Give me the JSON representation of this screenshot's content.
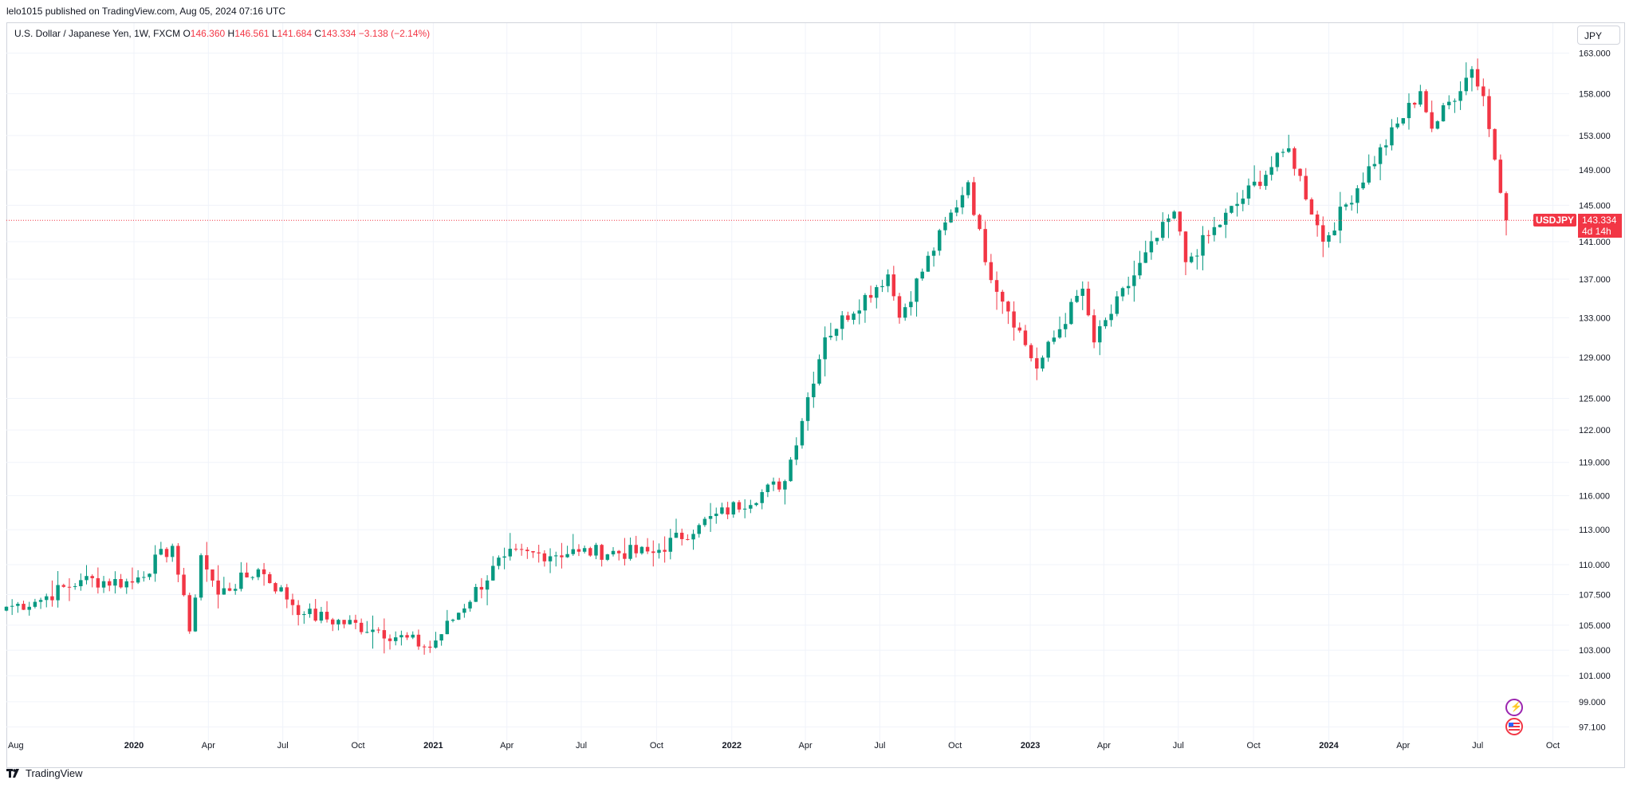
{
  "header": {
    "published_line": "lelo1015 published on TradingView.com, Aug 05, 2024 07:16 UTC"
  },
  "legend": {
    "symbol_desc": "U.S. Dollar / Japanese Yen, 1W, FXCM",
    "open_label": "O",
    "open": "146.360",
    "high_label": "H",
    "high": "146.561",
    "low_label": "L",
    "low": "141.684",
    "close_label": "C",
    "close": "143.334",
    "change": "−3.138 (−2.14%)"
  },
  "price_scale": {
    "currency": "JPY"
  },
  "last_price": {
    "symbol": "USDJPY",
    "price": "143.334",
    "countdown": "4d 14h"
  },
  "footer": {
    "brand": "TradingView"
  },
  "colors": {
    "up": "#089981",
    "down": "#f23645",
    "grid": "#f0f3fa",
    "last_line": "#f23645"
  },
  "icons": {
    "event_1": "lightning-icon",
    "event_2": "us-flag-icon",
    "logo": "tradingview-logo-icon"
  },
  "chart_data": {
    "type": "candlestick",
    "title": "U.S. Dollar / Japanese Yen, 1W, FXCM",
    "interval": "1W",
    "y_scale": "log",
    "ylim": [
      96.0,
      166.8
    ],
    "xlim": [
      "2019-07-29",
      "2024-10-21"
    ],
    "grid": true,
    "y_ticks": [
      97.1,
      99.0,
      101.0,
      103.0,
      105.0,
      107.5,
      110.0,
      113.0,
      116.0,
      119.0,
      122.0,
      125.0,
      129.0,
      133.0,
      137.0,
      141.0,
      145.0,
      149.0,
      153.0,
      158.0,
      163.0
    ],
    "y_tick_labels": [
      "97.100",
      "99.000",
      "101.000",
      "103.000",
      "105.000",
      "107.500",
      "110.000",
      "113.000",
      "116.000",
      "119.000",
      "122.000",
      "125.000",
      "129.000",
      "133.000",
      "137.000",
      "141.000",
      "145.000",
      "149.000",
      "153.000",
      "158.000",
      "163.000"
    ],
    "x_ticks": [
      {
        "label": "Aug",
        "date": "2019-08-01"
      },
      {
        "label": "2020",
        "date": "2020-01-01"
      },
      {
        "label": "Apr",
        "date": "2020-04-01"
      },
      {
        "label": "Jul",
        "date": "2020-07-01"
      },
      {
        "label": "Oct",
        "date": "2020-10-01"
      },
      {
        "label": "2021",
        "date": "2021-01-01"
      },
      {
        "label": "Apr",
        "date": "2021-04-01"
      },
      {
        "label": "Jul",
        "date": "2021-07-01"
      },
      {
        "label": "Oct",
        "date": "2021-10-01"
      },
      {
        "label": "2022",
        "date": "2022-01-01"
      },
      {
        "label": "Apr",
        "date": "2022-04-01"
      },
      {
        "label": "Jul",
        "date": "2022-07-01"
      },
      {
        "label": "Oct",
        "date": "2022-10-01"
      },
      {
        "label": "2023",
        "date": "2023-01-01"
      },
      {
        "label": "Apr",
        "date": "2023-04-01"
      },
      {
        "label": "Jul",
        "date": "2023-07-01"
      },
      {
        "label": "Oct",
        "date": "2023-10-01"
      },
      {
        "label": "2024",
        "date": "2024-01-01"
      },
      {
        "label": "Apr",
        "date": "2024-04-01"
      },
      {
        "label": "Jul",
        "date": "2024-07-01"
      },
      {
        "label": "Oct",
        "date": "2024-10-01"
      }
    ],
    "last_price": 143.334,
    "weekly_close_anchors": [
      {
        "date": "2019-07-29",
        "close": 106.5
      },
      {
        "date": "2019-09-02",
        "close": 106.9
      },
      {
        "date": "2019-10-28",
        "close": 108.7
      },
      {
        "date": "2019-12-30",
        "close": 108.5
      },
      {
        "date": "2020-02-17",
        "close": 111.6
      },
      {
        "date": "2020-03-09",
        "close": 104.5
      },
      {
        "date": "2020-03-23",
        "close": 110.8
      },
      {
        "date": "2020-04-13",
        "close": 107.5
      },
      {
        "date": "2020-06-01",
        "close": 109.6
      },
      {
        "date": "2020-07-27",
        "close": 105.9
      },
      {
        "date": "2020-10-26",
        "close": 104.6
      },
      {
        "date": "2020-12-28",
        "close": 103.2
      },
      {
        "date": "2021-03-29",
        "close": 110.7
      },
      {
        "date": "2021-06-28",
        "close": 111.1
      },
      {
        "date": "2021-09-27",
        "close": 111.0
      },
      {
        "date": "2021-11-22",
        "close": 113.4
      },
      {
        "date": "2022-03-07",
        "close": 117.3
      },
      {
        "date": "2022-04-25",
        "close": 131.0
      },
      {
        "date": "2022-07-11",
        "close": 137.5
      },
      {
        "date": "2022-07-25",
        "close": 133.0
      },
      {
        "date": "2022-10-17",
        "close": 147.6
      },
      {
        "date": "2022-11-07",
        "close": 138.8
      },
      {
        "date": "2023-01-09",
        "close": 127.9
      },
      {
        "date": "2023-03-06",
        "close": 136.0
      },
      {
        "date": "2023-03-20",
        "close": 130.5
      },
      {
        "date": "2023-06-26",
        "close": 144.3
      },
      {
        "date": "2023-07-10",
        "close": 138.8
      },
      {
        "date": "2023-11-13",
        "close": 151.5
      },
      {
        "date": "2023-12-25",
        "close": 141.0
      },
      {
        "date": "2024-04-22",
        "close": 158.3
      },
      {
        "date": "2024-05-06",
        "close": 153.8
      },
      {
        "date": "2024-06-24",
        "close": 161.0
      },
      {
        "date": "2024-07-08",
        "close": 157.7
      },
      {
        "date": "2024-07-29",
        "close": 146.4
      },
      {
        "date": "2024-08-05",
        "close": 143.334
      }
    ],
    "final_candle": {
      "date": "2024-08-05",
      "open": 146.36,
      "high": 146.561,
      "low": 141.684,
      "close": 143.334
    }
  }
}
